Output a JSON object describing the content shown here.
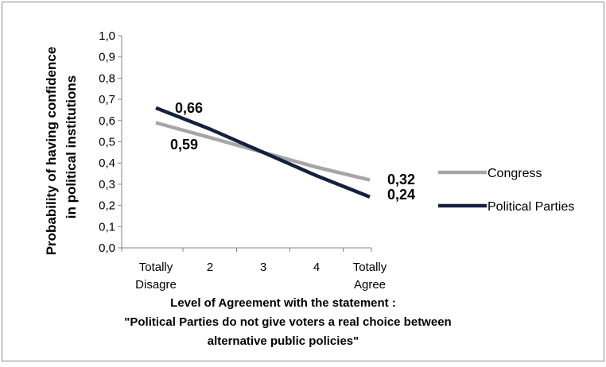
{
  "chart_data": {
    "type": "line",
    "title": "",
    "ylabel_line1": "Probability of having confidence",
    "ylabel_line2": "in political institutions",
    "xlabel_lines": [
      "Level of Agreement with the statement :",
      "\"Political Parties do not give voters a real choice between",
      "alternative public policies\""
    ],
    "categories": [
      [
        "Totally",
        "Disagre"
      ],
      [
        "2"
      ],
      [
        "3"
      ],
      [
        "4"
      ],
      [
        "Totally",
        "Agree"
      ]
    ],
    "ylim": [
      0,
      1.0
    ],
    "yticks": [
      "0,0",
      "0,1",
      "0,2",
      "0,3",
      "0,4",
      "0,5",
      "0,6",
      "0,7",
      "0,8",
      "0,9",
      "1,0"
    ],
    "grid": false,
    "legend_position": "right",
    "series": [
      {
        "name": "Congress",
        "color": "#a6a6a6",
        "values": [
          0.59,
          0.52,
          0.45,
          0.38,
          0.32
        ],
        "data_labels": [
          {
            "index": 0,
            "text": "0,59"
          },
          {
            "index": 4,
            "text": "0,32"
          }
        ]
      },
      {
        "name": "Political Parties",
        "color": "#14213d",
        "values": [
          0.66,
          0.56,
          0.45,
          0.34,
          0.24
        ],
        "data_labels": [
          {
            "index": 0,
            "text": "0,66"
          },
          {
            "index": 4,
            "text": "0,24"
          }
        ]
      }
    ]
  }
}
